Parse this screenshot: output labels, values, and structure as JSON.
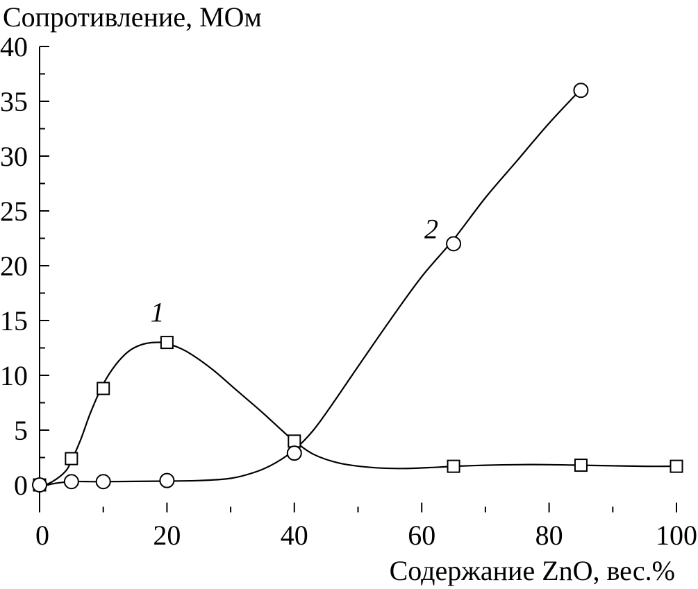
{
  "chart_data": {
    "type": "line",
    "ylabel": "Сопротивление, МОм",
    "xlabel": "Содержание ZnO, вес.%",
    "xlim": [
      0,
      100
    ],
    "ylim": [
      -2.5,
      40
    ],
    "x_ticks": [
      0,
      20,
      40,
      60,
      80,
      100
    ],
    "y_ticks": [
      0,
      5,
      10,
      15,
      20,
      25,
      30,
      35,
      40
    ],
    "grid": false,
    "colors": {
      "line": "#000000",
      "marker_fill": "#ffffff"
    },
    "series": [
      {
        "label_text": "1",
        "label_at": [
          18.5,
          15.8
        ],
        "marker": "square",
        "x": [
          0,
          5,
          10,
          20,
          40,
          65,
          85,
          100
        ],
        "y": [
          0,
          2.4,
          8.8,
          13,
          4,
          1.7,
          1.8,
          1.7
        ],
        "curve": [
          [
            0,
            -0.2
          ],
          [
            2,
            0.3
          ],
          [
            4,
            1.2
          ],
          [
            5,
            2.2
          ],
          [
            6.5,
            4.2
          ],
          [
            8,
            6.6
          ],
          [
            10,
            9.2
          ],
          [
            12,
            11.0
          ],
          [
            14,
            12.2
          ],
          [
            16,
            12.8
          ],
          [
            18,
            13.0
          ],
          [
            20,
            12.9
          ],
          [
            23,
            12.2
          ],
          [
            27,
            10.6
          ],
          [
            31,
            8.6
          ],
          [
            35,
            6.6
          ],
          [
            38,
            5.0
          ],
          [
            40,
            4.0
          ],
          [
            43,
            2.8
          ],
          [
            47,
            2.0
          ],
          [
            52,
            1.6
          ],
          [
            57,
            1.5
          ],
          [
            62,
            1.6
          ],
          [
            65,
            1.7
          ],
          [
            70,
            1.8
          ],
          [
            75,
            1.85
          ],
          [
            80,
            1.85
          ],
          [
            85,
            1.8
          ],
          [
            90,
            1.75
          ],
          [
            95,
            1.7
          ],
          [
            100,
            1.7
          ]
        ]
      },
      {
        "label_text": "2",
        "label_at": [
          61.5,
          23.4
        ],
        "marker": "circle",
        "x": [
          0,
          5,
          10,
          20,
          40,
          65,
          85
        ],
        "y": [
          0,
          0.3,
          0.3,
          0.4,
          2.9,
          22,
          36
        ],
        "curve": [
          [
            0,
            -0.2
          ],
          [
            2,
            0.1
          ],
          [
            5,
            0.3
          ],
          [
            10,
            0.3
          ],
          [
            20,
            0.35
          ],
          [
            25,
            0.4
          ],
          [
            30,
            0.6
          ],
          [
            34,
            1.2
          ],
          [
            37,
            2.0
          ],
          [
            40,
            3.2
          ],
          [
            43,
            5.0
          ],
          [
            46,
            7.4
          ],
          [
            50,
            10.8
          ],
          [
            55,
            15.0
          ],
          [
            60,
            19.0
          ],
          [
            65,
            22.4
          ],
          [
            70,
            26.2
          ],
          [
            75,
            29.6
          ],
          [
            80,
            33.0
          ],
          [
            85,
            36.1
          ]
        ]
      }
    ]
  }
}
